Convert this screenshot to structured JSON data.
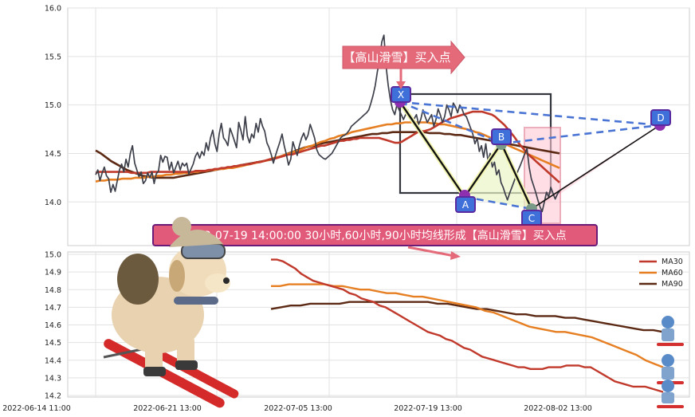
{
  "chart_data": [
    {
      "type": "line",
      "panel": "price",
      "ylim": [
        13.55,
        16.0
      ],
      "y_ticks": [
        "16.0",
        "15.5",
        "15.0",
        "14.5",
        "14.0"
      ],
      "grid": true,
      "colors": {
        "close": "#3d3f4a",
        "ma30": "#c0392b",
        "ma60": "#e67e22",
        "ma90": "#5c2a14"
      },
      "series": [
        {
          "key": "close",
          "values": [
            14.28,
            14.33,
            14.22,
            14.3,
            14.36,
            14.27,
            14.24,
            14.1,
            14.18,
            14.11,
            14.22,
            14.33,
            14.39,
            14.31,
            14.44,
            14.36,
            14.5,
            14.58,
            14.4,
            14.33,
            14.26,
            14.31,
            14.19,
            14.22,
            14.3,
            14.25,
            14.31,
            14.19,
            14.29,
            14.32,
            14.48,
            14.41,
            14.47,
            14.46,
            14.33,
            14.41,
            14.3,
            14.36,
            14.42,
            14.33,
            14.4,
            14.37,
            14.4,
            14.29,
            14.34,
            14.39,
            14.47,
            14.51,
            14.45,
            14.52,
            14.48,
            14.61,
            14.53,
            14.66,
            14.74,
            14.6,
            14.52,
            14.7,
            14.81,
            14.66,
            14.63,
            14.58,
            14.76,
            14.7,
            14.63,
            14.56,
            14.82,
            14.74,
            14.64,
            14.88,
            14.68,
            14.61,
            14.7,
            14.66,
            14.81,
            14.72,
            14.86,
            14.78,
            14.73,
            14.61,
            14.56,
            14.49,
            14.4,
            14.48,
            14.55,
            14.62,
            14.7,
            14.58,
            14.49,
            14.38,
            14.44,
            14.62,
            14.55,
            14.48,
            14.58,
            14.66,
            14.71,
            14.64,
            14.69,
            14.8,
            14.73,
            14.66,
            14.54,
            14.49,
            14.47,
            14.45,
            14.44,
            14.46,
            14.48,
            14.5,
            14.54,
            14.58,
            14.62,
            14.66,
            14.68,
            14.69,
            14.71,
            14.74,
            14.78,
            14.8,
            14.82,
            14.84,
            14.86,
            14.88,
            14.9,
            14.92,
            14.95,
            15.02,
            15.1,
            15.2,
            15.35,
            15.45,
            15.65,
            15.72,
            15.4,
            15.2,
            15.05,
            14.95,
            14.9,
            15.0,
            14.95,
            14.9,
            14.85,
            14.9,
            14.95,
            14.88,
            14.82,
            14.86,
            14.9,
            14.8,
            14.85,
            14.95,
            14.88,
            14.82,
            14.86,
            14.9,
            14.78,
            14.85,
            14.96,
            14.9,
            14.82,
            14.88,
            15.0,
            14.95,
            14.88,
            15.02,
            14.98,
            14.92,
            15.0,
            14.96,
            14.9,
            14.88,
            14.82,
            14.76,
            14.7,
            14.6,
            14.66,
            14.52,
            14.58,
            14.46,
            14.6,
            14.42,
            14.5,
            14.36,
            14.41,
            14.28,
            14.33,
            14.2,
            14.15,
            14.08,
            14.02,
            14.09,
            14.15,
            14.21,
            14.27,
            14.33,
            14.38,
            14.44,
            14.5,
            14.55,
            14.36,
            14.24,
            14.17,
            14.1,
            14.02,
            13.95,
            13.9,
            14.0,
            14.1,
            14.05,
            14.15,
            14.09,
            14.03,
            14.08,
            14.11
          ]
        },
        {
          "key": "ma30",
          "values": [
            14.3,
            14.31,
            14.31,
            14.31,
            14.31,
            14.31,
            14.31,
            14.31,
            14.31,
            14.31,
            14.31,
            14.3,
            14.3,
            14.3,
            14.3,
            14.3,
            14.3,
            14.31,
            14.31,
            14.31,
            14.31,
            14.31,
            14.31,
            14.31,
            14.31,
            14.31,
            14.31,
            14.31,
            14.31,
            14.31,
            14.31,
            14.32,
            14.32,
            14.32,
            14.32,
            14.33,
            14.33,
            14.34,
            14.34,
            14.35,
            14.35,
            14.36,
            14.36,
            14.37,
            14.37,
            14.38,
            14.38,
            14.39,
            14.39,
            14.4,
            14.41,
            14.41,
            14.42,
            14.43,
            14.44,
            14.44,
            14.45,
            14.46,
            14.47,
            14.48,
            14.49,
            14.49,
            14.5,
            14.51,
            14.52,
            14.53,
            14.54,
            14.55,
            14.56,
            14.57,
            14.58,
            14.58,
            14.59,
            14.6,
            14.61,
            14.62,
            14.63,
            14.63,
            14.64,
            14.64,
            14.65,
            14.65,
            14.66,
            14.66,
            14.66,
            14.66,
            14.66,
            14.66,
            14.66,
            14.65,
            14.64,
            14.63,
            14.62,
            14.61,
            14.61,
            14.62,
            14.64,
            14.66,
            14.68,
            14.7,
            14.72,
            14.73,
            14.73,
            14.74,
            14.75,
            14.77,
            14.79,
            14.81,
            14.83,
            14.84,
            14.86,
            14.87,
            14.88,
            14.89,
            14.9,
            14.91,
            14.92,
            14.93,
            14.93,
            14.93,
            14.93,
            14.92,
            14.91,
            14.9,
            14.88,
            14.85,
            14.82,
            14.79,
            14.75,
            14.71,
            14.67,
            14.62,
            14.58,
            14.54,
            14.5,
            14.47,
            14.44,
            14.41,
            14.38,
            14.35,
            14.32,
            14.29,
            14.26,
            14.23,
            14.2
          ]
        },
        {
          "key": "ma60",
          "values": [
            14.21,
            14.22,
            14.22,
            14.23,
            14.23,
            14.23,
            14.24,
            14.24,
            14.24,
            14.25,
            14.25,
            14.25,
            14.26,
            14.26,
            14.27,
            14.27,
            14.28,
            14.28,
            14.29,
            14.29,
            14.3,
            14.3,
            14.31,
            14.31,
            14.32,
            14.32,
            14.33,
            14.33,
            14.34,
            14.34,
            14.35,
            14.35,
            14.36,
            14.37,
            14.38,
            14.39,
            14.4,
            14.41,
            14.42,
            14.43,
            14.45,
            14.46,
            14.47,
            14.49,
            14.5,
            14.52,
            14.53,
            14.55,
            14.57,
            14.58,
            14.6,
            14.62,
            14.63,
            14.65,
            14.66,
            14.68,
            14.69,
            14.7,
            14.72,
            14.73,
            14.74,
            14.75,
            14.76,
            14.77,
            14.78,
            14.79,
            14.8,
            14.8,
            14.81,
            14.81,
            14.82,
            14.82,
            14.82,
            14.82,
            14.82,
            14.82,
            14.81,
            14.81,
            14.8,
            14.8,
            14.79,
            14.78,
            14.77,
            14.76,
            14.75,
            14.74,
            14.72,
            14.71,
            14.69,
            14.67,
            14.65,
            14.63,
            14.61,
            14.59,
            14.57,
            14.55,
            14.53,
            14.51,
            14.49,
            14.47,
            14.45,
            14.43,
            14.41,
            14.39,
            14.37,
            14.35
          ]
        },
        {
          "key": "ma90",
          "values": [
            14.53,
            14.5,
            14.46,
            14.42,
            14.39,
            14.36,
            14.33,
            14.31,
            14.29,
            14.27,
            14.26,
            14.25,
            14.25,
            14.25,
            14.25,
            14.25,
            14.26,
            14.27,
            14.28,
            14.29,
            14.3,
            14.31,
            14.32,
            14.33,
            14.34,
            14.35,
            14.36,
            14.37,
            14.38,
            14.39,
            14.4,
            14.41,
            14.42,
            14.43,
            14.44,
            14.46,
            14.48,
            14.5,
            14.52,
            14.54,
            14.56,
            14.57,
            14.58,
            14.6,
            14.61,
            14.62,
            14.63,
            14.64,
            14.65,
            14.66,
            14.67,
            14.68,
            14.69,
            14.7,
            14.7,
            14.71,
            14.71,
            14.72,
            14.72,
            14.72,
            14.72,
            14.72,
            14.72,
            14.72,
            14.71,
            14.71,
            14.71,
            14.7,
            14.7,
            14.69,
            14.69,
            14.68,
            14.67,
            14.66,
            14.65,
            14.64,
            14.63,
            14.62,
            14.61,
            14.6,
            14.59,
            14.58,
            14.57,
            14.56,
            14.55,
            14.54,
            14.53,
            14.52,
            14.51,
            14.5
          ]
        }
      ],
      "x_ranges": {
        "close": [
          0.02,
          0.975
        ],
        "ma30": [
          0.02,
          0.975
        ],
        "ma60": [
          0.02,
          0.975
        ],
        "ma90": [
          0.02,
          0.975
        ]
      },
      "pattern_points": [
        {
          "label": "X",
          "t": 0.5,
          "y": 15.0
        },
        {
          "label": "A",
          "t": 0.672,
          "y": 14.08
        },
        {
          "label": "B",
          "t": 0.77,
          "y": 14.56
        },
        {
          "label": "C",
          "t": 0.862,
          "y": 13.96
        },
        {
          "label": "D",
          "t": 1.0,
          "y": 14.78
        }
      ],
      "annotation": "【高山滑雪】买入点"
    },
    {
      "type": "line",
      "panel": "moving_averages",
      "ylim": [
        14.2,
        15.0
      ],
      "y_ticks": [
        "15.0",
        "14.9",
        "14.8",
        "14.7",
        "14.6",
        "14.5",
        "14.4",
        "14.3",
        "14.2"
      ],
      "x_ticks": [
        "2022-06-14 11:00",
        "2022-06-21 13:00",
        "2022-07-05 13:00",
        "2022-07-19 13:00",
        "2022-08-02 13:00"
      ],
      "grid": true,
      "legend_position": "top-right",
      "series": [
        {
          "name": "MA30",
          "color": "#c0392b",
          "values": [
            14.97,
            14.97,
            14.96,
            14.94,
            14.92,
            14.89,
            14.87,
            14.85,
            14.84,
            14.83,
            14.82,
            14.81,
            14.8,
            14.78,
            14.77,
            14.75,
            14.74,
            14.73,
            14.71,
            14.7,
            14.68,
            14.66,
            14.64,
            14.62,
            14.6,
            14.58,
            14.56,
            14.55,
            14.54,
            14.52,
            14.51,
            14.49,
            14.47,
            14.46,
            14.44,
            14.42,
            14.41,
            14.4,
            14.39,
            14.38,
            14.37,
            14.36,
            14.36,
            14.35,
            14.35,
            14.35,
            14.36,
            14.36,
            14.36,
            14.37,
            14.37,
            14.37,
            14.36,
            14.36,
            14.34,
            14.32,
            14.3,
            14.28,
            14.27,
            14.26,
            14.25,
            14.25,
            14.25,
            14.24,
            14.23,
            14.22
          ]
        },
        {
          "name": "MA60",
          "color": "#e67e22",
          "values": [
            14.82,
            14.82,
            14.83,
            14.83,
            14.83,
            14.83,
            14.83,
            14.82,
            14.82,
            14.81,
            14.8,
            14.8,
            14.79,
            14.78,
            14.78,
            14.77,
            14.76,
            14.76,
            14.75,
            14.74,
            14.73,
            14.72,
            14.71,
            14.7,
            14.68,
            14.67,
            14.65,
            14.63,
            14.61,
            14.59,
            14.58,
            14.57,
            14.56,
            14.56,
            14.55,
            14.54,
            14.53,
            14.51,
            14.49,
            14.47,
            14.45,
            14.43,
            14.4,
            14.38,
            14.36
          ]
        },
        {
          "name": "MA90",
          "color": "#5c2a14",
          "values": [
            14.69,
            14.7,
            14.71,
            14.71,
            14.72,
            14.72,
            14.72,
            14.72,
            14.73,
            14.73,
            14.73,
            14.73,
            14.73,
            14.73,
            14.73,
            14.73,
            14.73,
            14.72,
            14.72,
            14.71,
            14.7,
            14.69,
            14.69,
            14.68,
            14.67,
            14.66,
            14.66,
            14.65,
            14.65,
            14.65,
            14.64,
            14.64,
            14.63,
            14.62,
            14.61,
            14.6,
            14.59,
            14.58,
            14.57,
            14.57,
            14.56
          ]
        }
      ],
      "x_ranges": {
        "MA30": [
          0.31,
          0.82
        ],
        "MA60": [
          0.31,
          0.92
        ],
        "MA90": [
          0.31,
          0.92
        ]
      }
    }
  ],
  "signal_text": "2022-07-19 14:00:00 30小时,60小时,90小时均线形成【高山滑雪】买入点"
}
